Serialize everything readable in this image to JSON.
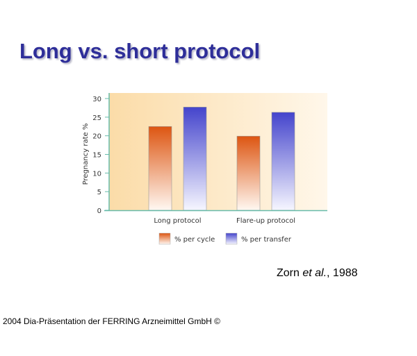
{
  "slide": {
    "title": "Long vs. short protocol",
    "citation_author": "Zorn ",
    "citation_etal": "et al.",
    "citation_year": ", 1988",
    "footer": "2004 Dia-Präsentation der FERRING Arzneimittel GmbH ©"
  },
  "chart_data": {
    "type": "bar",
    "title": "",
    "xlabel": "",
    "ylabel": "Pregnancy rate %",
    "ylim": [
      0,
      30
    ],
    "yticks": [
      0,
      5,
      10,
      15,
      20,
      25,
      30
    ],
    "categories": [
      "Long protocol",
      "Flare-up protocol"
    ],
    "series": [
      {
        "name": "% per cycle",
        "values": [
          22.5,
          19.9
        ],
        "color": "#dd5511"
      },
      {
        "name": "% per transfer",
        "values": [
          27.7,
          26.3
        ],
        "color": "#4444cc"
      }
    ],
    "legend": "bottom",
    "grid": false,
    "background_color": "#fbe3b8",
    "axis_color": "#66bbaa"
  }
}
